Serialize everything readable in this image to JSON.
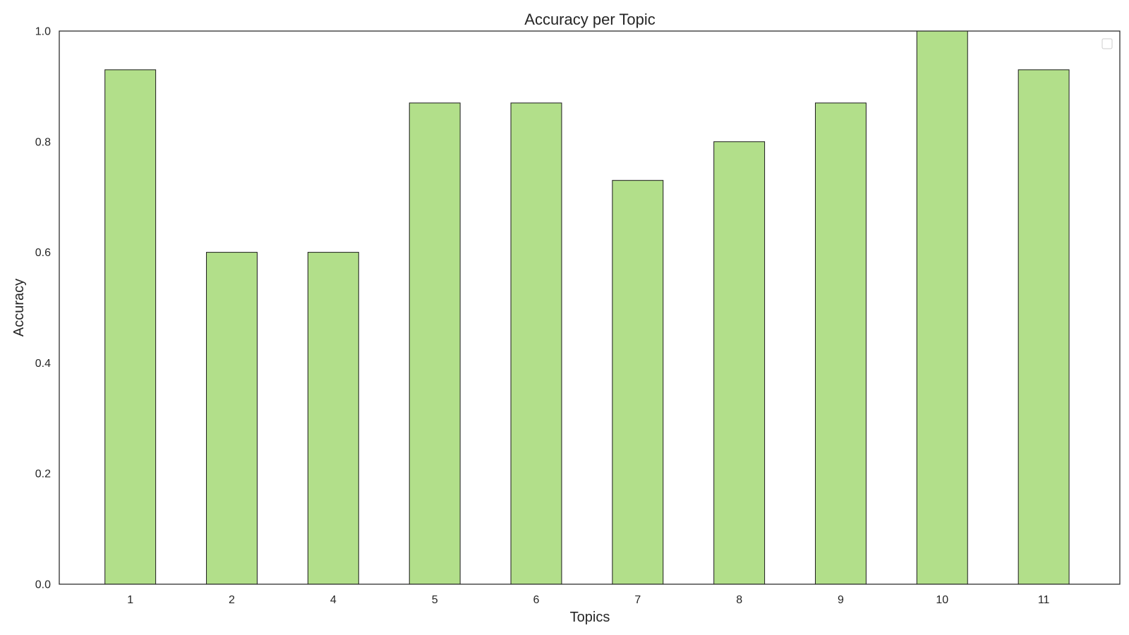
{
  "chart_data": {
    "type": "bar",
    "title": "Accuracy per Topic",
    "xlabel": "Topics",
    "ylabel": "Accuracy",
    "categories": [
      "1",
      "2",
      "4",
      "5",
      "6",
      "7",
      "8",
      "9",
      "10",
      "11"
    ],
    "values": [
      0.93,
      0.6,
      0.6,
      0.87,
      0.87,
      0.73,
      0.8,
      0.87,
      1.0,
      0.93
    ],
    "ylim": [
      0,
      1.0
    ],
    "yticks": [
      "0.0",
      "0.2",
      "0.4",
      "0.6",
      "0.8",
      "1.0"
    ],
    "grid": false,
    "legend": "upper-right (empty)",
    "bar_color": "#b2df8a",
    "bar_edge_color": "#1a1a1a"
  }
}
